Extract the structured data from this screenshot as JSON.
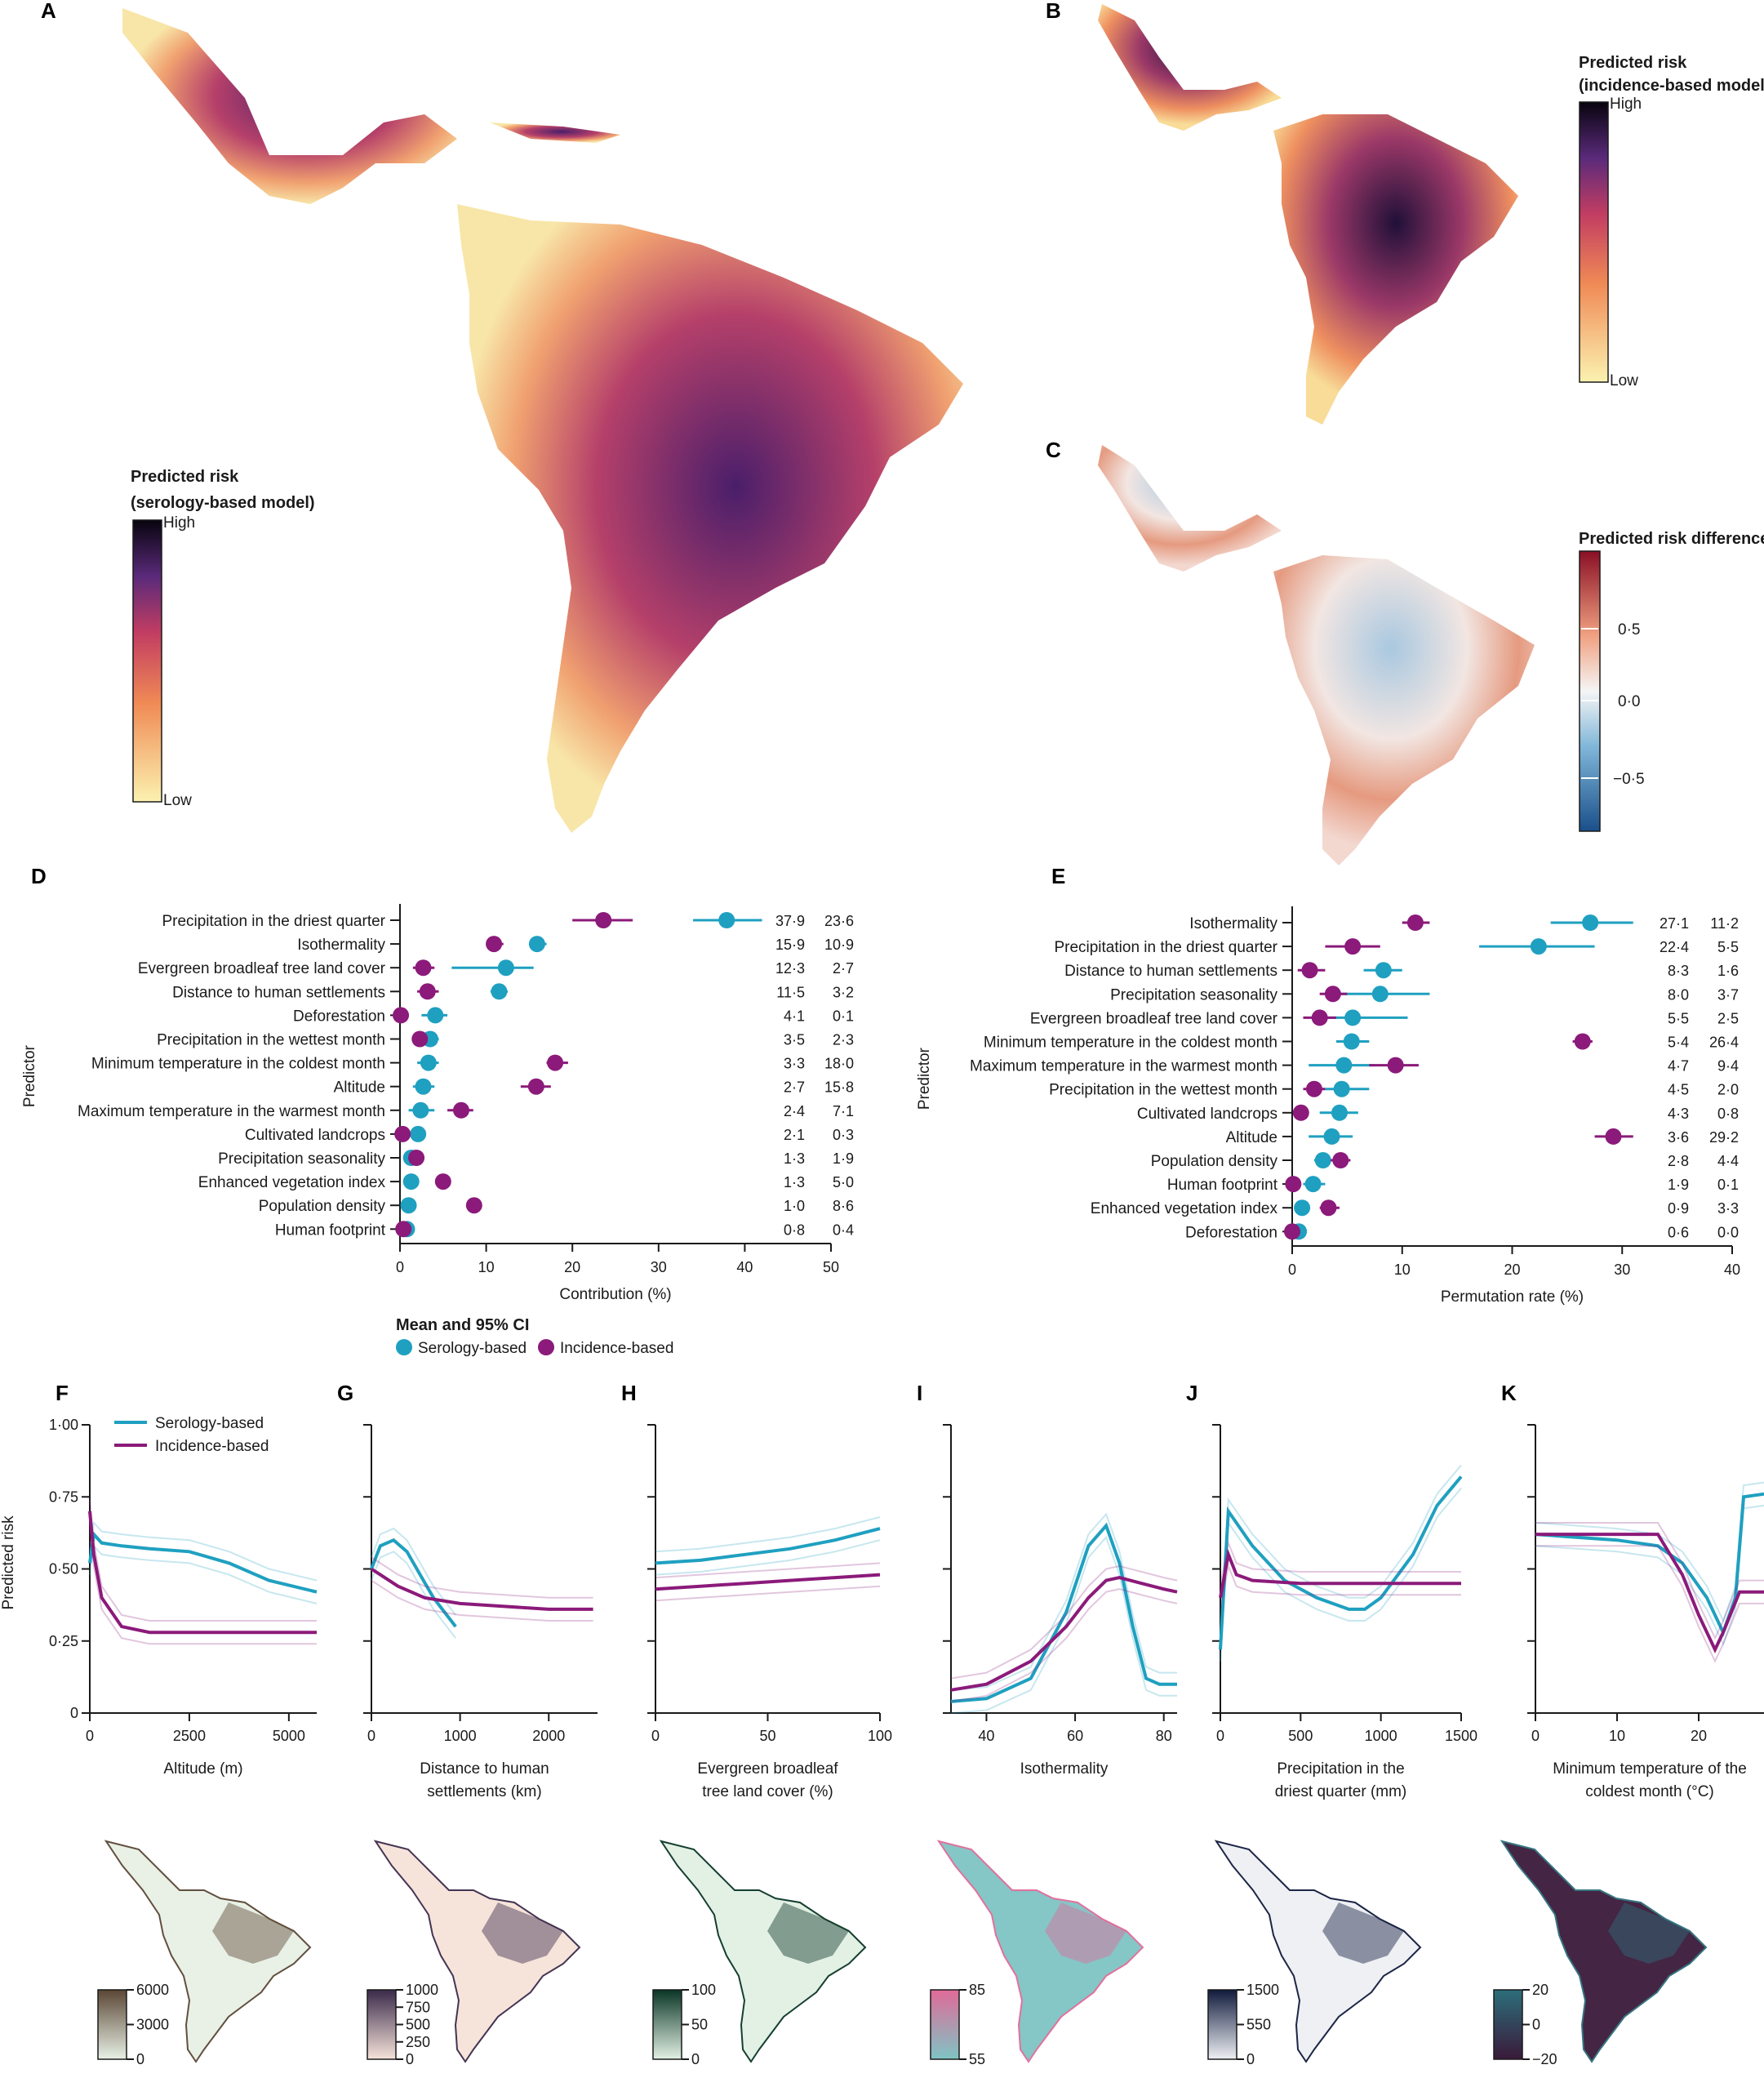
{
  "panels": {
    "A": {
      "letter": "A",
      "legend_title_1": "Predicted risk",
      "legend_title_2": "(serology-based model)",
      "high": "High",
      "low": "Low"
    },
    "B": {
      "letter": "B",
      "legend_title_1": "Predicted risk",
      "legend_title_2": "(incidence-based model)",
      "high": "High",
      "low": "Low"
    },
    "C": {
      "letter": "C",
      "legend_title": "Predicted risk difference",
      "ticks": [
        "0·5",
        "0·0",
        "−0·5"
      ]
    },
    "F": {
      "letter": "F"
    },
    "G": {
      "letter": "G"
    },
    "H": {
      "letter": "H"
    },
    "I": {
      "letter": "I"
    },
    "J": {
      "letter": "J"
    },
    "K": {
      "letter": "K"
    }
  },
  "colors": {
    "serology": "#1fa0c0",
    "incidence": "#8b1a7a",
    "risk_low": "#fbf2b0",
    "risk_mid": "#e8604a",
    "risk_high": "#150a2a",
    "diff_pos": "#b2182b",
    "diff_neg": "#2166ac"
  },
  "chart_data": [
    {
      "id": "D",
      "type": "scatter",
      "panel_letter": "D",
      "ylabel": "Predictor",
      "xlabel": "Contribution (%)",
      "xlim": [
        0,
        50
      ],
      "xticks": [
        "0",
        "10",
        "20",
        "30",
        "40",
        "50"
      ],
      "predictors": [
        "Precipitation in the driest quarter",
        "Isothermality",
        "Evergreen broadleaf tree land cover",
        "Distance to human settlements",
        "Deforestation",
        "Precipitation in the wettest month",
        "Minimum temperature in the coldest month",
        "Altitude",
        "Maximum temperature in the warmest month",
        "Cultivated landcrops",
        "Precipitation seasonality",
        "Enhanced vegetation index",
        "Population density",
        "Human footprint"
      ],
      "serology": [
        37.9,
        15.9,
        12.3,
        11.5,
        4.1,
        3.5,
        3.3,
        2.7,
        2.4,
        2.1,
        1.3,
        1.3,
        1.0,
        0.8
      ],
      "serology_ci": [
        [
          34,
          42
        ],
        [
          15,
          17
        ],
        [
          6,
          15.5
        ],
        [
          10.5,
          12.5
        ],
        [
          2.5,
          5.5
        ],
        [
          2.5,
          4.5
        ],
        [
          2,
          4.5
        ],
        [
          1.5,
          4
        ],
        [
          1,
          4
        ],
        [
          1,
          3
        ],
        [
          0.5,
          2
        ],
        [
          0.5,
          2
        ],
        [
          0.3,
          1.8
        ],
        [
          0.2,
          1.4
        ]
      ],
      "incidence": [
        23.6,
        10.9,
        2.7,
        3.2,
        0.1,
        2.3,
        18.0,
        15.8,
        7.1,
        0.3,
        1.9,
        5.0,
        8.6,
        0.4
      ],
      "incidence_ci": [
        [
          20,
          27
        ],
        [
          10,
          12
        ],
        [
          1.5,
          4
        ],
        [
          2,
          4.5
        ],
        [
          0,
          0.5
        ],
        [
          1.5,
          3
        ],
        [
          17,
          19.5
        ],
        [
          14,
          17.5
        ],
        [
          5.5,
          8.5
        ],
        [
          0,
          0.7
        ],
        [
          1.2,
          2.5
        ],
        [
          4.5,
          5.5
        ],
        [
          8,
          9
        ],
        [
          0,
          0.8
        ]
      ],
      "serology_labels": [
        "37·9",
        "15·9",
        "12·3",
        "11·5",
        "4·1",
        "3·5",
        "3·3",
        "2·7",
        "2·4",
        "2·1",
        "1·3",
        "1·3",
        "1·0",
        "0·8"
      ],
      "incidence_labels": [
        "23·6",
        "10·9",
        "2·7",
        "3·2",
        "0·1",
        "2·3",
        "18·0",
        "15·8",
        "7·1",
        "0·3",
        "1·9",
        "5·0",
        "8·6",
        "0·4"
      ]
    },
    {
      "id": "E",
      "type": "scatter",
      "panel_letter": "E",
      "ylabel": "Predictor",
      "xlabel": "Permutation rate (%)",
      "xlim": [
        0,
        40
      ],
      "xticks": [
        "0",
        "10",
        "20",
        "30",
        "40"
      ],
      "predictors": [
        "Isothermality",
        "Precipitation in the driest quarter",
        "Distance to human settlements",
        "Precipitation seasonality",
        "Evergreen broadleaf tree land cover",
        "Minimum temperature in the coldest month",
        "Maximum temperature in the warmest month",
        "Precipitation in the wettest month",
        "Cultivated landcrops",
        "Altitude",
        "Population density",
        "Human footprint",
        "Enhanced vegetation index",
        "Deforestation"
      ],
      "serology": [
        27.1,
        22.4,
        8.3,
        8.0,
        5.5,
        5.4,
        4.7,
        4.5,
        4.3,
        3.6,
        2.8,
        1.9,
        0.9,
        0.6
      ],
      "serology_ci": [
        [
          23.5,
          31
        ],
        [
          17,
          27.5
        ],
        [
          6.5,
          10
        ],
        [
          4,
          12.5
        ],
        [
          3,
          10.5
        ],
        [
          4,
          7
        ],
        [
          1.5,
          7.5
        ],
        [
          3,
          7
        ],
        [
          2.5,
          6
        ],
        [
          1.5,
          5.5
        ],
        [
          2,
          3.5
        ],
        [
          1,
          3
        ],
        [
          0.3,
          1.5
        ],
        [
          0.1,
          1.2
        ]
      ],
      "incidence": [
        11.2,
        5.5,
        1.6,
        3.7,
        2.5,
        26.4,
        9.4,
        2.0,
        0.8,
        29.2,
        4.4,
        0.1,
        3.3,
        0.0
      ],
      "incidence_ci": [
        [
          10,
          12.5
        ],
        [
          3,
          8
        ],
        [
          0.5,
          3
        ],
        [
          2.5,
          5
        ],
        [
          1,
          4
        ],
        [
          25.5,
          27.3
        ],
        [
          7,
          11.5
        ],
        [
          1,
          3
        ],
        [
          0.2,
          1.5
        ],
        [
          27.5,
          31
        ],
        [
          3.5,
          5.3
        ],
        [
          0,
          0.3
        ],
        [
          2.5,
          4.3
        ],
        [
          0,
          0.3
        ]
      ],
      "serology_labels": [
        "27·1",
        "22·4",
        "8·3",
        "8·0",
        "5·5",
        "5·4",
        "4·7",
        "4·5",
        "4·3",
        "3·6",
        "2·8",
        "1·9",
        "0·9",
        "0·6"
      ],
      "incidence_labels": [
        "11·2",
        "5·5",
        "1·6",
        "3·7",
        "2·5",
        "26·4",
        "9·4",
        "2·0",
        "0·8",
        "29·2",
        "4·4",
        "0·1",
        "3·3",
        "0·0"
      ],
      "legend_title": "Mean and 95% CI",
      "legend_items": [
        "Serology-based",
        "Incidence-based"
      ]
    },
    {
      "id": "F",
      "type": "line",
      "panel_letter": "F",
      "ylabel": "Predicted risk",
      "xlabel": "Altitude (m)",
      "xlim": [
        0,
        5700
      ],
      "ylim": [
        0,
        1
      ],
      "yticks": [
        "0",
        "0·25",
        "0·50",
        "0·75",
        "1·00"
      ],
      "xticks": [
        0,
        2500,
        5000
      ],
      "xtick_labels": [
        "0",
        "2500",
        "5000"
      ],
      "legend": [
        "Serology-based",
        "Incidence-based"
      ],
      "series": [
        {
          "name": "Serology-based",
          "x": [
            0,
            100,
            300,
            800,
            1500,
            2500,
            3500,
            4500,
            5700
          ],
          "y": [
            0.52,
            0.62,
            0.59,
            0.58,
            0.57,
            0.56,
            0.52,
            0.46,
            0.42
          ]
        },
        {
          "name": "Incidence-based",
          "x": [
            0,
            100,
            300,
            800,
            1500,
            2500,
            3500,
            4500,
            5700
          ],
          "y": [
            0.7,
            0.55,
            0.4,
            0.3,
            0.28,
            0.28,
            0.28,
            0.28,
            0.28
          ]
        }
      ]
    },
    {
      "id": "G",
      "type": "line",
      "panel_letter": "G",
      "xlabel": "Distance to human settlements (km)",
      "xlim": [
        0,
        2550
      ],
      "ylim": [
        0,
        1
      ],
      "yticks": [
        0,
        0.25,
        0.5,
        0.75,
        1
      ],
      "xticks": [
        0,
        1000,
        2000
      ],
      "xtick_labels": [
        "0",
        "1000",
        "2000"
      ],
      "series": [
        {
          "name": "Serology-based",
          "x": [
            0,
            100,
            250,
            400,
            550,
            700,
            850,
            950
          ],
          "y": [
            0.5,
            0.58,
            0.6,
            0.56,
            0.48,
            0.4,
            0.34,
            0.3
          ]
        },
        {
          "name": "Incidence-based",
          "x": [
            0,
            100,
            300,
            600,
            1000,
            1500,
            2000,
            2500
          ],
          "y": [
            0.5,
            0.48,
            0.44,
            0.4,
            0.38,
            0.37,
            0.36,
            0.36
          ]
        }
      ]
    },
    {
      "id": "H",
      "type": "line",
      "panel_letter": "H",
      "xlabel": "Evergreen broadleaf tree land cover (%)",
      "xlim": [
        0,
        100
      ],
      "ylim": [
        0,
        1
      ],
      "yticks": [
        0,
        0.25,
        0.5,
        0.75,
        1
      ],
      "xticks": [
        0,
        50,
        100
      ],
      "xtick_labels": [
        "0",
        "50",
        "100"
      ],
      "series": [
        {
          "name": "Serology-based",
          "x": [
            0,
            20,
            40,
            60,
            80,
            100
          ],
          "y": [
            0.52,
            0.53,
            0.55,
            0.57,
            0.6,
            0.64
          ]
        },
        {
          "name": "Incidence-based",
          "x": [
            0,
            20,
            40,
            60,
            80,
            100
          ],
          "y": [
            0.43,
            0.44,
            0.45,
            0.46,
            0.47,
            0.48
          ]
        }
      ]
    },
    {
      "id": "I",
      "type": "line",
      "panel_letter": "I",
      "xlabel": "Isothermality",
      "xlim": [
        32,
        83
      ],
      "ylim": [
        0,
        1
      ],
      "yticks": [
        0,
        0.25,
        0.5,
        0.75,
        1
      ],
      "xticks": [
        40,
        60,
        80
      ],
      "xtick_labels": [
        "40",
        "60",
        "80"
      ],
      "series": [
        {
          "name": "Serology-based",
          "x": [
            32,
            40,
            50,
            58,
            63,
            67,
            70,
            73,
            76,
            79,
            83
          ],
          "y": [
            0.04,
            0.05,
            0.12,
            0.35,
            0.58,
            0.65,
            0.52,
            0.3,
            0.12,
            0.1,
            0.1
          ]
        },
        {
          "name": "Incidence-based",
          "x": [
            32,
            40,
            50,
            58,
            63,
            67,
            70,
            75,
            80,
            83
          ],
          "y": [
            0.08,
            0.1,
            0.18,
            0.3,
            0.4,
            0.46,
            0.47,
            0.45,
            0.43,
            0.42
          ]
        }
      ]
    },
    {
      "id": "J",
      "type": "line",
      "panel_letter": "J",
      "xlabel": "Precipitation in the driest quarter (mm)",
      "xlim": [
        0,
        1500
      ],
      "ylim": [
        0,
        1
      ],
      "yticks": [
        0,
        0.25,
        0.5,
        0.75,
        1
      ],
      "xticks": [
        0,
        500,
        1000,
        1500
      ],
      "xtick_labels": [
        "0",
        "500",
        "1000",
        "1500"
      ],
      "series": [
        {
          "name": "Serology-based",
          "x": [
            0,
            50,
            200,
            400,
            600,
            800,
            900,
            1000,
            1200,
            1350,
            1500
          ],
          "y": [
            0.22,
            0.7,
            0.58,
            0.46,
            0.4,
            0.36,
            0.36,
            0.4,
            0.55,
            0.72,
            0.82
          ]
        },
        {
          "name": "Incidence-based",
          "x": [
            0,
            50,
            100,
            200,
            500,
            800,
            1000,
            1500
          ],
          "y": [
            0.4,
            0.55,
            0.48,
            0.46,
            0.45,
            0.45,
            0.45,
            0.45
          ]
        }
      ]
    },
    {
      "id": "K",
      "type": "line",
      "panel_letter": "K",
      "xlabel": "Minimum temperature of the coldest month (°C)",
      "xlim": [
        0,
        28
      ],
      "ylim": [
        0,
        1
      ],
      "yticks": [
        0,
        0.25,
        0.5,
        0.75,
        1
      ],
      "xticks": [
        0,
        10,
        20
      ],
      "xtick_labels": [
        "0",
        "10",
        "20"
      ],
      "series": [
        {
          "name": "Serology-based",
          "x": [
            0,
            5,
            10,
            15,
            18,
            21,
            23,
            24.5,
            25.5,
            28
          ],
          "y": [
            0.62,
            0.61,
            0.6,
            0.58,
            0.52,
            0.4,
            0.28,
            0.4,
            0.75,
            0.76
          ]
        },
        {
          "name": "Incidence-based",
          "x": [
            0,
            5,
            10,
            15,
            18,
            20,
            22,
            23,
            25,
            28
          ],
          "y": [
            0.62,
            0.62,
            0.62,
            0.62,
            0.48,
            0.34,
            0.22,
            0.28,
            0.42,
            0.42
          ]
        }
      ]
    }
  ],
  "maps": [
    {
      "id": "altitude",
      "ticks": [
        "6000",
        "3000",
        "0"
      ],
      "color_low": "#e8f1e6",
      "color_high": "#5a4634"
    },
    {
      "id": "distance",
      "ticks": [
        "1000",
        "750",
        "500",
        "250",
        "0"
      ],
      "color_low": "#f6e3da",
      "color_high": "#3a2a4a"
    },
    {
      "id": "tree",
      "ticks": [
        "100",
        "50",
        "0"
      ],
      "color_low": "#e2f1e4",
      "color_high": "#0a3526"
    },
    {
      "id": "isothermality",
      "ticks": [
        "85",
        "55"
      ],
      "color_low": "#7fc4c4",
      "color_high": "#e06a98"
    },
    {
      "id": "driest",
      "ticks": [
        "1500",
        "550",
        "0"
      ],
      "color_low": "#eef0f4",
      "color_high": "#101a3c"
    },
    {
      "id": "mintemp",
      "ticks": [
        "20",
        "0",
        "−20"
      ],
      "color_low": "#3a1a3a",
      "color_high": "#2c6e7a"
    }
  ]
}
